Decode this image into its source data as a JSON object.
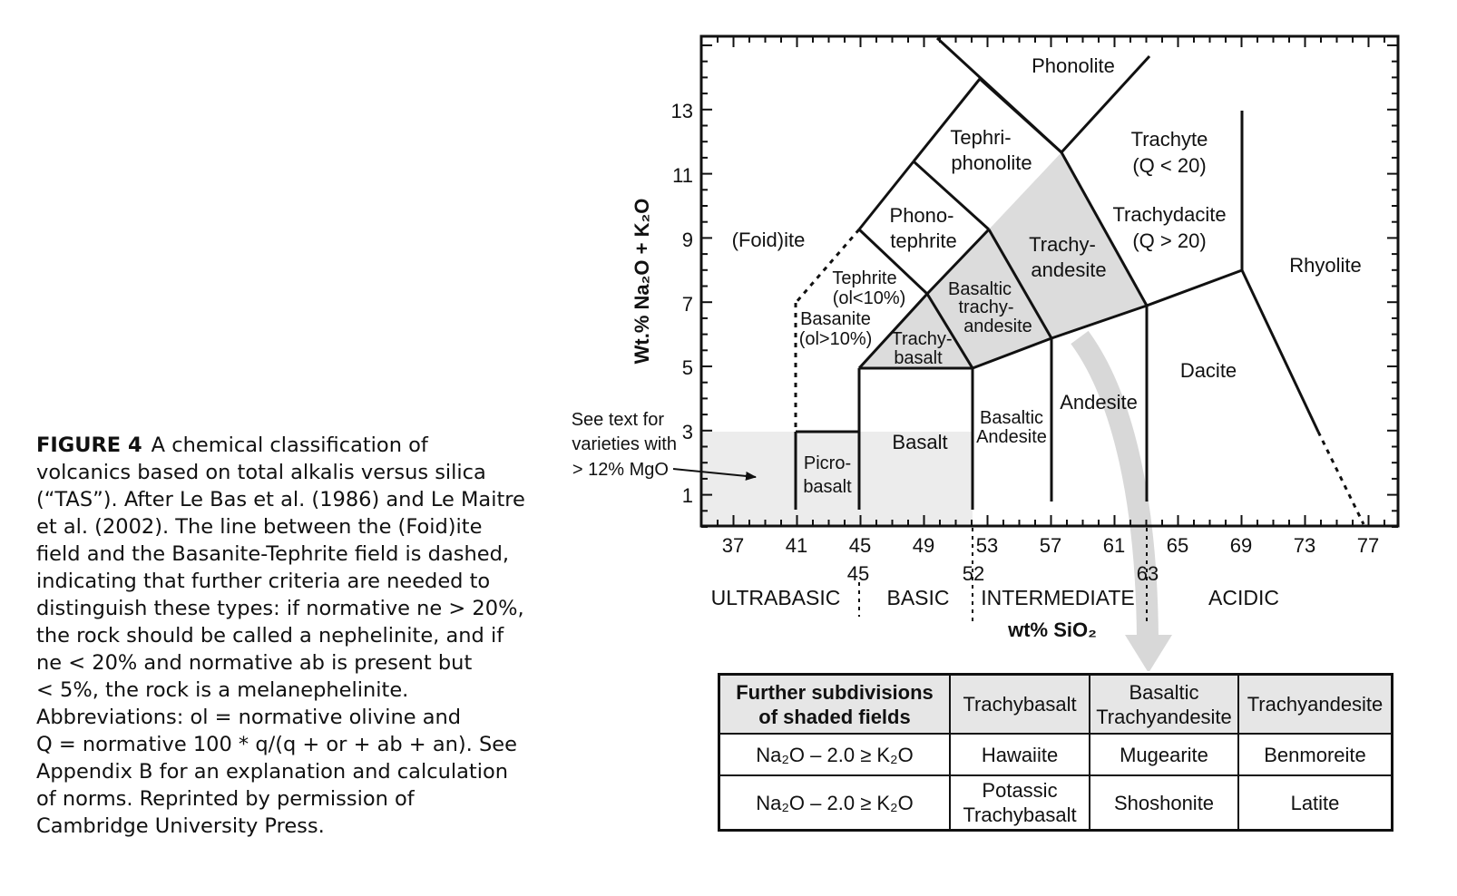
{
  "caption": {
    "label": "FIGURE 4",
    "lines": [
      "A chemical classification of",
      "volcanics based on total alkalis versus silica",
      "(“TAS”). After Le Bas et al. (1986) and Le Maitre",
      "et al. (2002). The line between the (Foid)ite",
      "field and the Basanite-Tephrite field is dashed,",
      "indicating that further criteria are needed to",
      "distinguish these types: if normative ne > 20%,",
      "the rock should be called a nephelinite, and if",
      "ne < 20% and normative ab is present but",
      "< 5%, the rock is a melanephelinite.",
      "Abbreviations: ol = normative olivine and",
      "Q = normative 100 * q/(q + or + ab + an). See",
      "Appendix B for an explanation and calculation",
      "of norms. Reprinted by permission of",
      "Cambridge University Press."
    ]
  },
  "diagram": {
    "y_axis_label": "Wt.% Na₂O + K₂O",
    "x_axis_label": "wt% SiO₂",
    "x_ticks": [
      "37",
      "41",
      "45",
      "49",
      "53",
      "57",
      "61",
      "65",
      "69",
      "73",
      "77"
    ],
    "y_ticks": [
      "1",
      "3",
      "5",
      "7",
      "9",
      "11",
      "13"
    ],
    "boundary_labels": [
      "45",
      "52",
      "63"
    ],
    "classes": [
      "ULTRABASIC",
      "BASIC",
      "INTERMEDIATE",
      "ACIDIC"
    ],
    "note": [
      "See text for",
      "varieties with",
      "> 12% MgO"
    ],
    "fields": {
      "phonolite": "Phonolite",
      "tephriphonolite": [
        "Tephri-",
        "phonolite"
      ],
      "trachyte": [
        "Trachyte",
        "(Q < 20)"
      ],
      "trachydacite": [
        "Trachydacite",
        "(Q > 20)"
      ],
      "phonotephrite": [
        "Phono-",
        "tephrite"
      ],
      "foidite": "(Foid)ite",
      "trachyandesite": [
        "Trachy-",
        "andesite"
      ],
      "rhyolite": "Rhyolite",
      "tephrite": [
        "Tephrite",
        "(ol<10%)"
      ],
      "basaltic_trachyandesite": [
        "Basaltic",
        "trachy-",
        "andesite"
      ],
      "basanite": [
        "Basanite",
        "(ol>10%)"
      ],
      "trachybasalt": [
        "Trachy-",
        "basalt"
      ],
      "dacite": "Dacite",
      "andesite": "Andesite",
      "basalt": "Basalt",
      "basaltic_andesite": [
        "Basaltic",
        "Andesite"
      ],
      "picrobasalt": [
        "Picro-",
        "basalt"
      ]
    }
  },
  "table": {
    "header": [
      "Further subdivisions of shaded fields",
      "Trachybasalt",
      "Basaltic Trachyandesite",
      "Trachyandesite"
    ],
    "rows": [
      {
        "condition": "Na₂O – 2.0 ≥ K₂O",
        "cells": [
          "Hawaiite",
          "Mugearite",
          "Benmoreite"
        ]
      },
      {
        "condition": "Na₂O – 2.0 ≥ K₂O",
        "cells": [
          "Potassic Trachybasalt",
          "Shoshonite",
          "Latite"
        ]
      }
    ]
  }
}
